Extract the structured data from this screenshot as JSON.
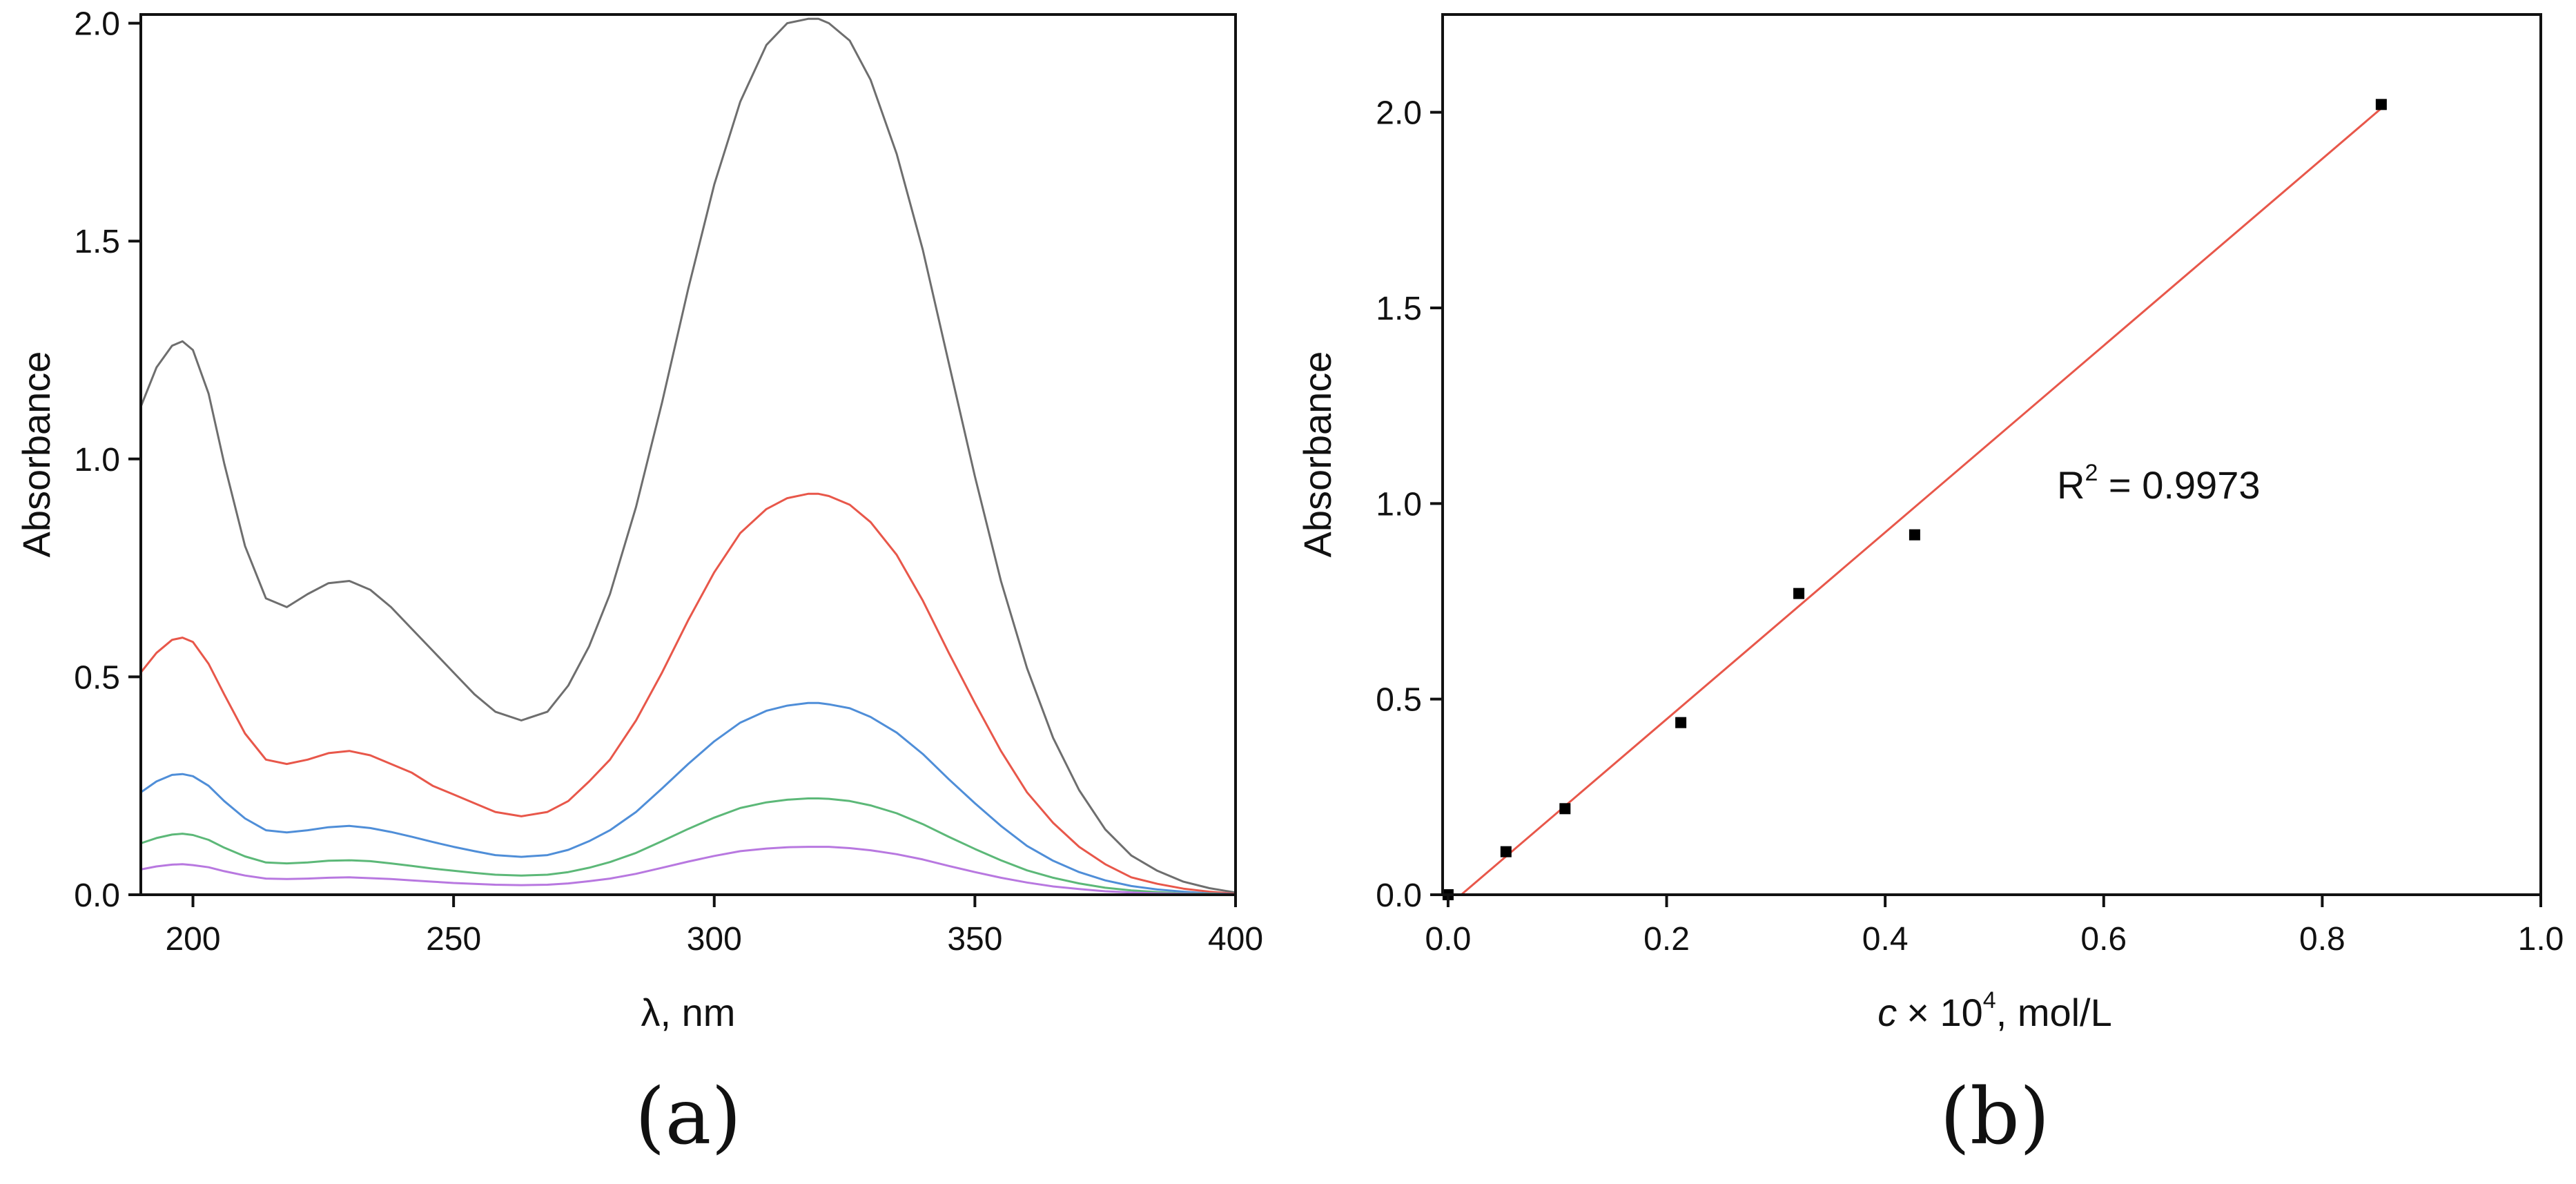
{
  "chart_data": [
    {
      "panel_label": "(a)",
      "type": "line",
      "xlabel": "λ, nm",
      "ylabel": "Absorbance",
      "xlim": [
        190,
        400
      ],
      "ylim": [
        0,
        2.02
      ],
      "xticks": [
        200,
        250,
        300,
        350,
        400
      ],
      "yticks": [
        0.0,
        0.5,
        1.0,
        1.5,
        2.0
      ],
      "xtick_labels": [
        "200",
        "250",
        "300",
        "350",
        "400"
      ],
      "ytick_labels": [
        "0.0",
        "0.5",
        "1.0",
        "1.5",
        "2.0"
      ],
      "x": [
        190,
        193,
        196,
        198,
        200,
        203,
        206,
        210,
        214,
        218,
        222,
        226,
        230,
        234,
        238,
        242,
        246,
        250,
        254,
        258,
        263,
        268,
        272,
        276,
        280,
        285,
        290,
        295,
        300,
        305,
        310,
        314,
        318,
        320,
        322,
        326,
        330,
        335,
        340,
        345,
        350,
        355,
        360,
        365,
        370,
        375,
        380,
        385,
        390,
        395,
        400
      ],
      "series": [
        {
          "name": "gray",
          "color": "#6e6e6e",
          "values": [
            1.12,
            1.21,
            1.26,
            1.27,
            1.25,
            1.15,
            0.99,
            0.8,
            0.68,
            0.66,
            0.69,
            0.715,
            0.72,
            0.7,
            0.66,
            0.61,
            0.56,
            0.51,
            0.46,
            0.42,
            0.4,
            0.42,
            0.48,
            0.57,
            0.69,
            0.89,
            1.13,
            1.39,
            1.63,
            1.82,
            1.95,
            2.0,
            2.01,
            2.01,
            2.0,
            1.96,
            1.87,
            1.7,
            1.48,
            1.22,
            0.96,
            0.72,
            0.52,
            0.36,
            0.24,
            0.15,
            0.09,
            0.055,
            0.03,
            0.015,
            0.005
          ]
        },
        {
          "name": "red",
          "color": "#e8574a",
          "values": [
            0.51,
            0.555,
            0.585,
            0.59,
            0.58,
            0.53,
            0.46,
            0.37,
            0.31,
            0.3,
            0.31,
            0.325,
            0.33,
            0.32,
            0.3,
            0.28,
            0.25,
            0.23,
            0.21,
            0.19,
            0.18,
            0.19,
            0.215,
            0.26,
            0.31,
            0.4,
            0.51,
            0.63,
            0.74,
            0.83,
            0.885,
            0.91,
            0.92,
            0.92,
            0.915,
            0.895,
            0.855,
            0.78,
            0.675,
            0.555,
            0.44,
            0.33,
            0.235,
            0.165,
            0.11,
            0.07,
            0.04,
            0.025,
            0.014,
            0.007,
            0.002
          ]
        },
        {
          "name": "blue",
          "color": "#4f8ed8",
          "values": [
            0.235,
            0.26,
            0.275,
            0.277,
            0.272,
            0.25,
            0.215,
            0.175,
            0.148,
            0.143,
            0.148,
            0.155,
            0.158,
            0.153,
            0.144,
            0.133,
            0.121,
            0.11,
            0.1,
            0.091,
            0.087,
            0.091,
            0.103,
            0.123,
            0.148,
            0.19,
            0.244,
            0.3,
            0.352,
            0.395,
            0.422,
            0.434,
            0.44,
            0.44,
            0.437,
            0.428,
            0.408,
            0.372,
            0.323,
            0.265,
            0.21,
            0.158,
            0.112,
            0.078,
            0.052,
            0.033,
            0.02,
            0.012,
            0.007,
            0.003,
            0.001
          ]
        },
        {
          "name": "green",
          "color": "#5cb878",
          "values": [
            0.118,
            0.13,
            0.138,
            0.14,
            0.137,
            0.126,
            0.108,
            0.088,
            0.074,
            0.072,
            0.074,
            0.078,
            0.079,
            0.077,
            0.072,
            0.066,
            0.06,
            0.055,
            0.05,
            0.046,
            0.044,
            0.046,
            0.052,
            0.062,
            0.075,
            0.096,
            0.123,
            0.151,
            0.177,
            0.199,
            0.212,
            0.218,
            0.221,
            0.221,
            0.22,
            0.215,
            0.205,
            0.187,
            0.162,
            0.133,
            0.105,
            0.079,
            0.056,
            0.039,
            0.026,
            0.016,
            0.01,
            0.006,
            0.003,
            0.002,
            0.0
          ]
        },
        {
          "name": "violet",
          "color": "#b878e0",
          "values": [
            0.058,
            0.065,
            0.069,
            0.07,
            0.068,
            0.063,
            0.054,
            0.044,
            0.037,
            0.036,
            0.037,
            0.039,
            0.04,
            0.038,
            0.036,
            0.033,
            0.03,
            0.027,
            0.025,
            0.023,
            0.022,
            0.023,
            0.026,
            0.031,
            0.037,
            0.048,
            0.062,
            0.076,
            0.089,
            0.1,
            0.106,
            0.109,
            0.11,
            0.11,
            0.11,
            0.107,
            0.102,
            0.093,
            0.081,
            0.066,
            0.052,
            0.039,
            0.028,
            0.019,
            0.013,
            0.008,
            0.005,
            0.003,
            0.002,
            0.001,
            0.0
          ]
        }
      ]
    },
    {
      "panel_label": "(b)",
      "type": "scatter",
      "xlabel_italic": "c",
      "xlabel_base": "× 10",
      "xlabel_sup": "4",
      "xlabel_rest": ", mol/L",
      "ylabel": "Absorbance",
      "xlim": [
        -0.005,
        1.0
      ],
      "ylim": [
        0,
        2.25
      ],
      "xticks": [
        0.0,
        0.2,
        0.4,
        0.6,
        0.8,
        1.0
      ],
      "yticks": [
        0.0,
        0.5,
        1.0,
        1.5,
        2.0
      ],
      "xtick_labels": [
        "0.0",
        "0.2",
        "0.4",
        "0.6",
        "0.8",
        "1.0"
      ],
      "ytick_labels": [
        "0.0",
        "0.5",
        "1.0",
        "1.5",
        "2.0"
      ],
      "points": {
        "x": [
          0.0,
          0.053,
          0.107,
          0.213,
          0.321,
          0.427,
          0.854
        ],
        "y": [
          0.0,
          0.11,
          0.22,
          0.44,
          0.77,
          0.92,
          2.02
        ]
      },
      "fit_line": {
        "color": "#e8574a",
        "x": [
          0.012,
          0.854
        ],
        "y": [
          0.0,
          2.01
        ]
      },
      "annotation": {
        "base": "R",
        "sup": "2",
        "rest": " = 0.9973"
      }
    }
  ]
}
